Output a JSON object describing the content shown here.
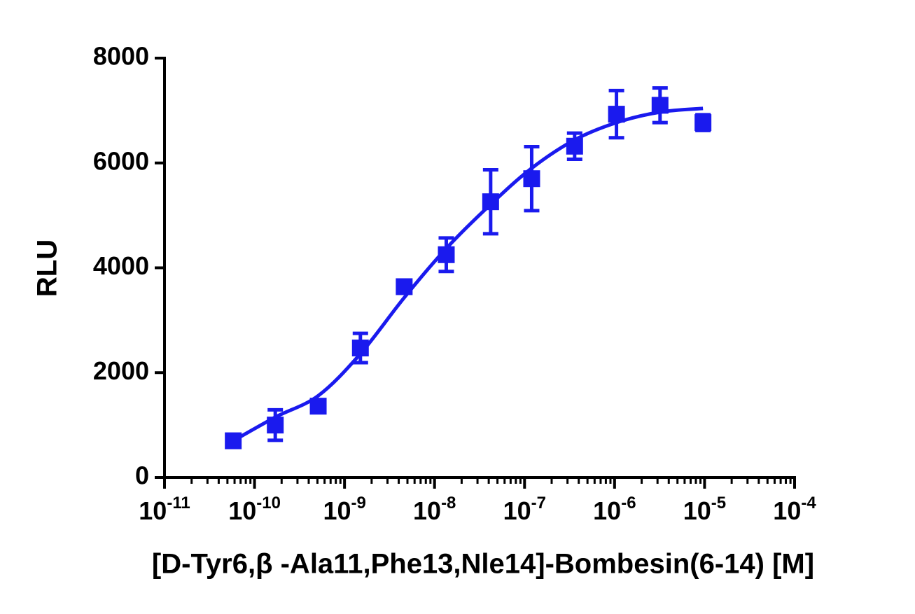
{
  "chart_data": {
    "type": "scatter",
    "x_label": "[D-Tyr6,β -Ala11,Phe13,Nle14]-Bombesin(6-14) [M]",
    "y_label": "RLU",
    "xscale": "log",
    "color": "#1a1aee",
    "x": [
      5.8e-11,
      1.7e-10,
      5.1e-10,
      1.5e-09,
      4.6e-09,
      1.35e-08,
      4.2e-08,
      1.2e-07,
      3.6e-07,
      1.05e-06,
      3.2e-06,
      9.6e-06
    ],
    "values": [
      700,
      1000,
      1360,
      2470,
      3640,
      4250,
      5260,
      5700,
      6320,
      6930,
      7100,
      6770
    ],
    "errors": [
      60,
      290,
      120,
      280,
      60,
      320,
      610,
      610,
      250,
      450,
      330,
      150
    ],
    "curve": {
      "x": [
        5.8e-11,
        1.7e-10,
        5.1e-10,
        1.5e-09,
        4.6e-09,
        1.35e-08,
        4.2e-08,
        1.2e-07,
        3.6e-07,
        1.05e-06,
        3.2e-06,
        9.6e-06
      ],
      "values": [
        700,
        1150,
        1560,
        2360,
        3430,
        4370,
        5210,
        5900,
        6440,
        6770,
        6970,
        7040
      ]
    },
    "xlim": [
      1e-11,
      0.0001
    ],
    "xticks": [
      {
        "value": 1e-11,
        "label": "10-11"
      },
      {
        "value": 1e-10,
        "label": "10-10"
      },
      {
        "value": 1e-09,
        "label": "10-9"
      },
      {
        "value": 1e-08,
        "label": "10-8"
      },
      {
        "value": 1e-07,
        "label": "10-7"
      },
      {
        "value": 1e-06,
        "label": "10-6"
      },
      {
        "value": 1e-05,
        "label": "10-5"
      },
      {
        "value": 0.0001,
        "label": "10-4"
      }
    ],
    "ylim": [
      0,
      8000
    ],
    "yticks": [
      0,
      2000,
      4000,
      6000,
      8000
    ],
    "grid": false
  }
}
